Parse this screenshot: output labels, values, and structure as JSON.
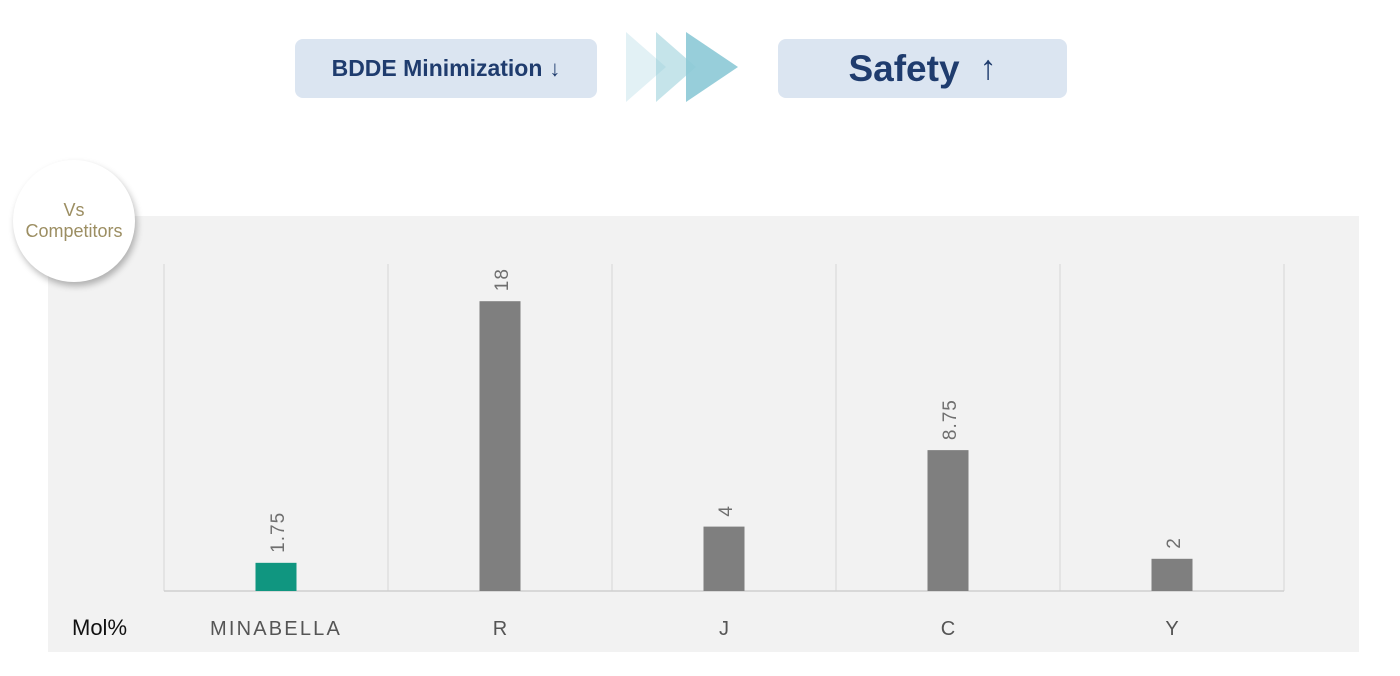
{
  "header": {
    "left_label": "BDDE Minimization",
    "left_arrow": "↓",
    "right_label": "Safety",
    "right_arrow": "↑"
  },
  "badge": {
    "line1": "Vs",
    "line2": "Competitors"
  },
  "colors": {
    "highlight_bar": "#109680",
    "other_bar": "#7f7f7f",
    "pill_bg": "#dbe5f1",
    "pill_text": "#1f3c6e",
    "badge_text": "#9c8e62",
    "chevron": "#8cc9d6"
  },
  "chart_data": {
    "type": "bar",
    "categories": [
      "MINABELLA",
      "R",
      "J",
      "C",
      "Y"
    ],
    "values": [
      1.75,
      18,
      4,
      8.75,
      2
    ],
    "data_labels": [
      "1.75",
      "18",
      "4",
      "8.75",
      "2"
    ],
    "xlabel": "Mol%",
    "ylabel": "",
    "ylim": [
      0,
      20
    ],
    "highlight_category": "MINABELLA",
    "grid": "vertical separators only"
  }
}
